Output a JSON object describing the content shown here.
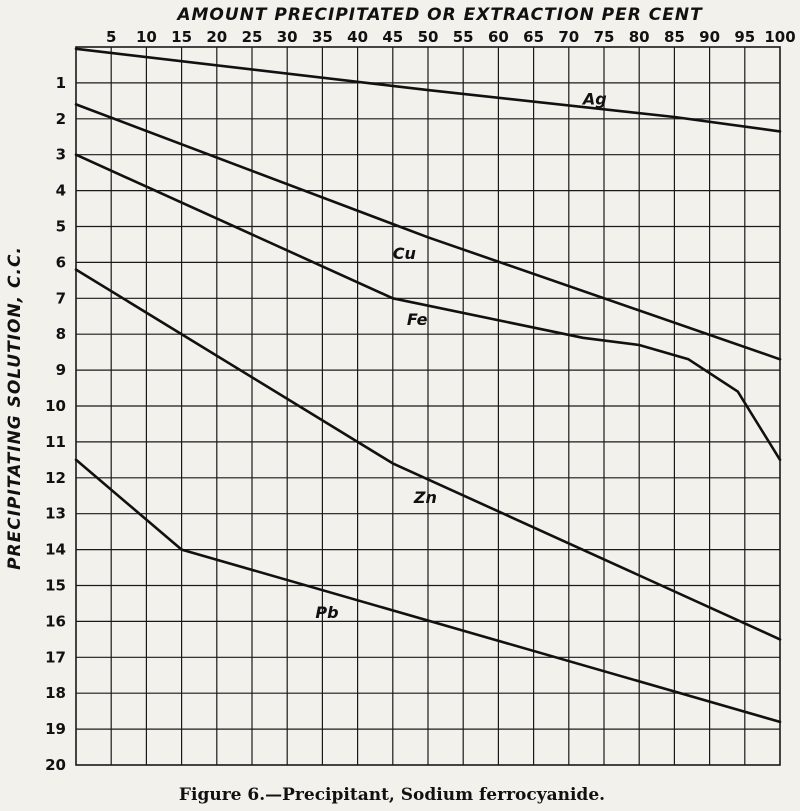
{
  "chart_data": {
    "type": "line",
    "title": "AMOUNT PRECIPITATED OR EXTRACTION PER CENT",
    "ylabel": "PRECIPITATING SOLUTION, C.C.",
    "caption": "Figure 6.—Precipitant, Sodium ferrocyanide.",
    "x_ticks": [
      5,
      10,
      15,
      20,
      25,
      30,
      35,
      40,
      45,
      50,
      55,
      60,
      65,
      70,
      75,
      80,
      85,
      90,
      95,
      100
    ],
    "y_ticks": [
      1,
      2,
      3,
      4,
      5,
      6,
      7,
      8,
      9,
      10,
      11,
      12,
      13,
      14,
      15,
      16,
      17,
      18,
      19,
      20
    ],
    "xlim": [
      0,
      100
    ],
    "ylim": [
      0,
      20
    ],
    "x_axis_position": "top",
    "y_inverted": true,
    "grid": true,
    "series": [
      {
        "name": "Ag",
        "points": [
          [
            0,
            0.05
          ],
          [
            50,
            1.2
          ],
          [
            85,
            1.95
          ],
          [
            100,
            2.35
          ]
        ]
      },
      {
        "name": "Cu",
        "points": [
          [
            0,
            1.6
          ],
          [
            50,
            5.3
          ],
          [
            100,
            8.7
          ]
        ]
      },
      {
        "name": "Fe",
        "points": [
          [
            0,
            3.0
          ],
          [
            45,
            7.0
          ],
          [
            72,
            8.1
          ],
          [
            80,
            8.3
          ],
          [
            87,
            8.7
          ],
          [
            94,
            9.6
          ],
          [
            100,
            11.5
          ]
        ]
      },
      {
        "name": "Zn",
        "points": [
          [
            0,
            6.2
          ],
          [
            45,
            11.6
          ],
          [
            100,
            16.5
          ]
        ]
      },
      {
        "name": "Pb",
        "points": [
          [
            0,
            11.5
          ],
          [
            15,
            14.0
          ],
          [
            100,
            18.8
          ]
        ]
      }
    ]
  }
}
